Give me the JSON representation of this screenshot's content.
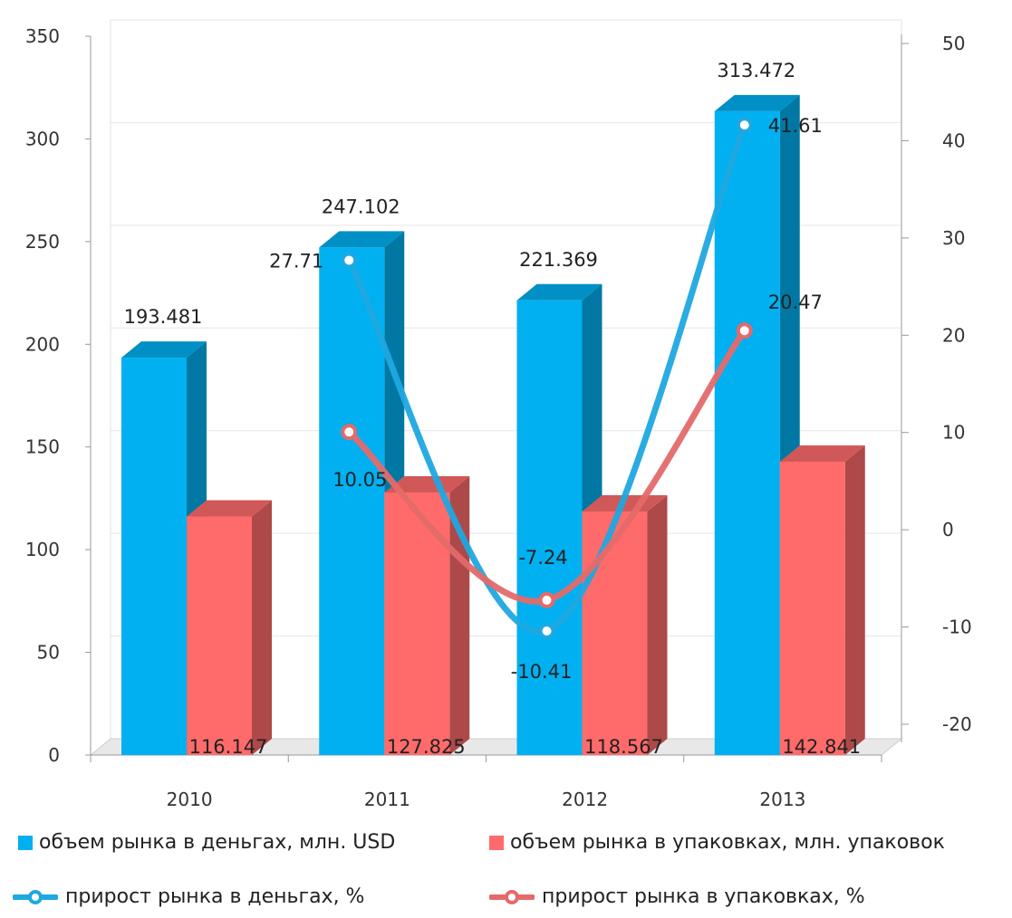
{
  "chart_data": {
    "type": "bar",
    "categories": [
      "2010",
      "2011",
      "2012",
      "2013"
    ],
    "y_left": {
      "ticks": [
        "0",
        "50",
        "100",
        "150",
        "200",
        "250",
        "300",
        "350"
      ],
      "ylim": [
        0,
        350
      ]
    },
    "y_right": {
      "ticks": [
        "-20",
        "-10",
        "0",
        "10",
        "20",
        "30",
        "40",
        "50"
      ],
      "ylim": [
        -20,
        50
      ]
    },
    "series": [
      {
        "name": "объем рынка в деньгах, млн. USD",
        "type": "bar",
        "axis": "left",
        "color": "#00b0f0",
        "values": [
          193.481,
          247.102,
          221.369,
          313.472
        ],
        "labels": [
          "193.481",
          "247.102",
          "221.369",
          "313.472"
        ]
      },
      {
        "name": "объем рынка в упаковках, млн. упаковок",
        "type": "bar",
        "axis": "left",
        "color": "#ff6b6b",
        "values": [
          116.147,
          127.825,
          118.567,
          142.841
        ],
        "labels": [
          "116.147",
          "127.825",
          "118.567",
          "142.841"
        ]
      },
      {
        "name": "прирост рынка в деньгах, %",
        "type": "line",
        "axis": "right",
        "color": "#1fa8e0",
        "values": [
          null,
          27.71,
          -10.41,
          41.61
        ],
        "labels": [
          "",
          "27.71",
          "-10.41",
          "41.61"
        ]
      },
      {
        "name": "прирост рынка в упаковках, %",
        "type": "line",
        "axis": "right",
        "color": "#e46a6a",
        "values": [
          null,
          10.05,
          -7.24,
          20.47
        ],
        "labels": [
          "",
          "10.05",
          "-7.24",
          "20.47"
        ]
      }
    ],
    "legend": "bottom",
    "grid": true
  }
}
